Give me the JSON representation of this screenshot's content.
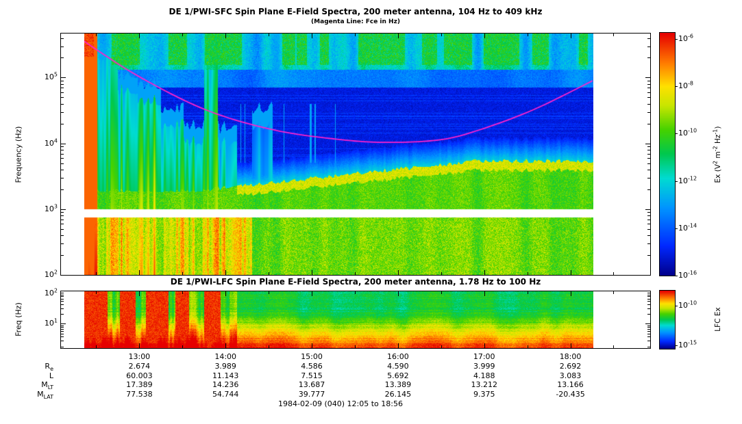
{
  "chart_data": {
    "type": "heatmap",
    "caption": "1984-02-09 (040) 12:05 to 18:56",
    "time_axis": {
      "start": "12:05",
      "end": "18:56",
      "tick_labels": [
        "13:00",
        "14:00",
        "15:00",
        "16:00",
        "17:00",
        "18:00"
      ],
      "tick_minutes": [
        55,
        115,
        175,
        235,
        295,
        355
      ],
      "total_minutes": 411,
      "data_start_minute": 17,
      "data_end_minute": 371
    },
    "colormap": [
      [
        0.0,
        "#00008c"
      ],
      [
        0.12,
        "#0028ff"
      ],
      [
        0.28,
        "#0096ff"
      ],
      [
        0.4,
        "#00dcd2"
      ],
      [
        0.5,
        "#00c850"
      ],
      [
        0.6,
        "#46d200"
      ],
      [
        0.7,
        "#c8e600"
      ],
      [
        0.78,
        "#ffe100"
      ],
      [
        0.88,
        "#ff7800"
      ],
      [
        1.0,
        "#e60000"
      ]
    ],
    "sfc": {
      "title": "DE 1/PWI-SFC  Spin Plane E-Field Spectra, 200 meter antenna, 104 Hz to 409 kHz",
      "subtitle": "(Magenta Line: Fce in Hz)",
      "ylabel": "Frequency (Hz)",
      "freq_range_hz": [
        104,
        409000
      ],
      "log_range": [
        2,
        5.67
      ],
      "ytick_logf": [
        5,
        4,
        3,
        2
      ],
      "ytick_labels": [
        "10^5",
        "10^4",
        "10^3",
        "10^2"
      ],
      "white_gap_logf": [
        2.87,
        3.0
      ],
      "colorbar": {
        "label": "Ex (V^2 m^-2 Hz^-1)",
        "tick_labels": [
          "10^-6",
          "10^-8",
          "10^-10",
          "10^-12",
          "10^-14",
          "10^-16"
        ]
      },
      "fce": {
        "color": "#ff22cc",
        "points_t_logf": [
          [
            0,
            5.55
          ],
          [
            0.104,
            5.03
          ],
          [
            0.238,
            4.51
          ],
          [
            0.373,
            4.2
          ],
          [
            0.507,
            4.05
          ],
          [
            0.6,
            4.01
          ],
          [
            0.7,
            4.05
          ],
          [
            0.777,
            4.2
          ],
          [
            0.884,
            4.51
          ],
          [
            1,
            4.95
          ]
        ]
      },
      "event_columns_t0_t1_logftop_intensity": [
        [
          0,
          0.025,
          5.67,
          1
        ],
        [
          0.025,
          0.065,
          5.3,
          0.78
        ],
        [
          0.065,
          0.105,
          4.8,
          0.82
        ],
        [
          0.105,
          0.15,
          4.65,
          0.95
        ],
        [
          0.15,
          0.195,
          4.3,
          0.85
        ],
        [
          0.195,
          0.235,
          4.05,
          0.9
        ],
        [
          0.235,
          0.262,
          5.6,
          0.8
        ],
        [
          0.262,
          0.3,
          4.0,
          0.72
        ],
        [
          0.33,
          0.37,
          4.3,
          0.55
        ]
      ],
      "hiss_band": {
        "logf_bottom": 3.0,
        "logf_top_start": 3.25,
        "logf_top_end": 3.7,
        "t_rise_start": 0.22,
        "t_rise_end": 0.77
      }
    },
    "lfc": {
      "title": "DE 1/PWI-LFC  Spin Plane E-Field Spectra, 200 meter antenna, 1.78 Hz to 100 Hz",
      "ylabel": "Freq (Hz)",
      "freq_range_hz": [
        1.78,
        100
      ],
      "log_range": [
        0.25,
        2
      ],
      "ytick_logf": [
        2,
        1
      ],
      "ytick_labels": [
        "10^2",
        "10^1"
      ],
      "colorbar": {
        "label": "LFC Ex",
        "tick_labels": [
          "10^-10",
          "10^-15"
        ]
      },
      "red_columns_t": [
        [
          0,
          0.045
        ],
        [
          0.07,
          0.1
        ],
        [
          0.12,
          0.165
        ],
        [
          0.178,
          0.206
        ],
        [
          0.235,
          0.268
        ]
      ]
    },
    "ephemeris": {
      "row_labels": [
        "R_e",
        "L",
        "M_LT",
        "M_LAT"
      ],
      "rows": [
        [
          "2.674",
          "3.989",
          "4.586",
          "4.590",
          "3.999",
          "2.692"
        ],
        [
          "60.003",
          "11.143",
          "7.515",
          "5.692",
          "4.188",
          "3.083"
        ],
        [
          "17.389",
          "14.236",
          "13.687",
          "13.389",
          "13.212",
          "13.166"
        ],
        [
          "77.538",
          "54.744",
          "39.777",
          "26.145",
          "9.375",
          "-20.435"
        ]
      ]
    }
  }
}
